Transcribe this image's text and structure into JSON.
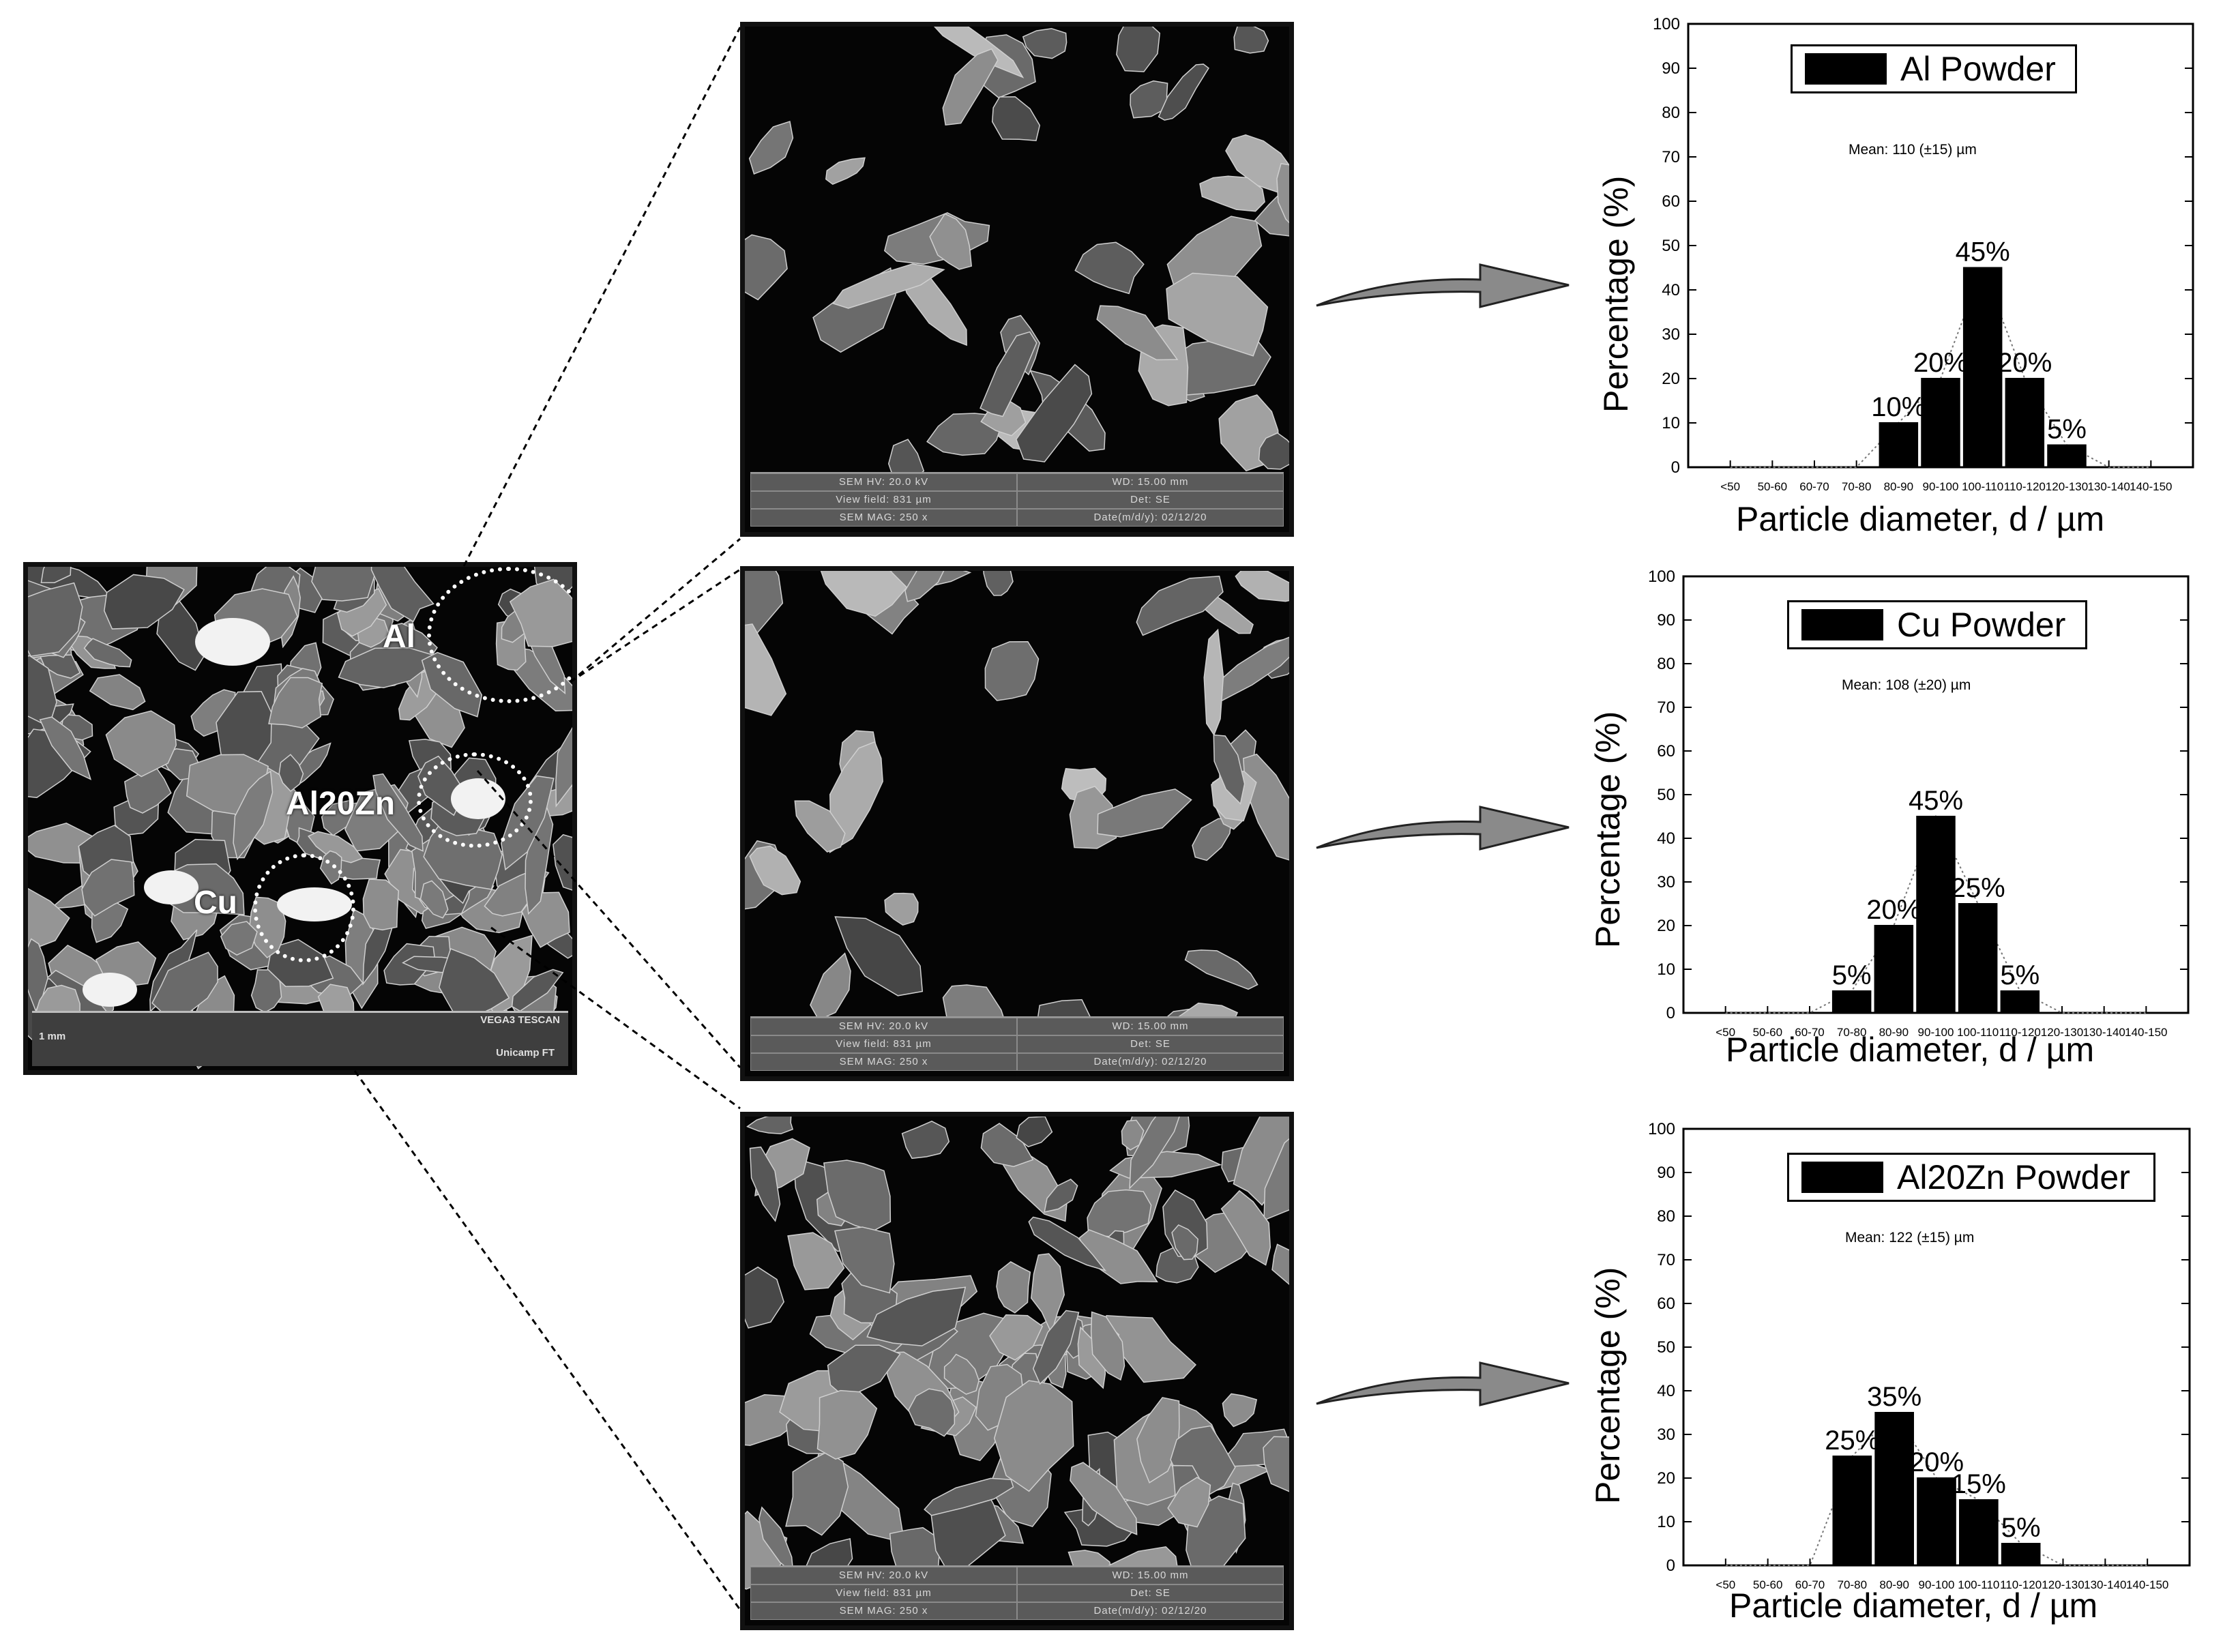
{
  "overview": {
    "footer_left": "1 mm",
    "footer_right_top": "VEGA3 TESCAN",
    "footer_right_bottom": "Unicamp FT",
    "regions": [
      {
        "label": "Al"
      },
      {
        "label": "Al20Zn"
      },
      {
        "label": "Cu"
      }
    ]
  },
  "sem_panels": [
    {
      "info": [
        "SEM HV: 20.0 kV",
        "WD: 15.00 mm",
        "View field: 831 µm",
        "Det: SE",
        "SEM MAG: 250 x",
        "Date(m/d/y): 02/12/20"
      ]
    },
    {
      "info": [
        "SEM HV: 20.0 kV",
        "WD: 15.00 mm",
        "View field: 831 µm",
        "Det: SE",
        "SEM MAG: 250 x",
        "Date(m/d/y): 02/12/20"
      ]
    },
    {
      "info": [
        "SEM HV: 20.0 kV",
        "WD: 15.00 mm",
        "View field: 831 µm",
        "Det: SE",
        "SEM MAG: 250 x",
        "Date(m/d/y): 02/12/20"
      ]
    }
  ],
  "chart_data": [
    {
      "type": "bar",
      "legend": "Al Powder",
      "mean_text": "Mean: 110 (±15) µm",
      "xlabel": "Particle diameter, d  / µm",
      "ylabel": "Percentage (%)",
      "ylim": [
        0,
        100
      ],
      "yticks": [
        "0",
        "10",
        "20",
        "30",
        "40",
        "50",
        "60",
        "70",
        "80",
        "90",
        "100"
      ],
      "categories": [
        "<50",
        "50-60",
        "60-70",
        "70-80",
        "80-90",
        "90-100",
        "100-110",
        "110-120",
        "120-130",
        "130-140",
        "140-150"
      ],
      "values": [
        0,
        0,
        0,
        0,
        10,
        20,
        45,
        20,
        5,
        0,
        0
      ],
      "data_labels": [
        "",
        "",
        "",
        "",
        "10%",
        "20%",
        "45%",
        "20%",
        "5%",
        "",
        ""
      ],
      "legend_position": "top",
      "bar_color": "#000000"
    },
    {
      "type": "bar",
      "legend": "Cu Powder",
      "mean_text": "Mean: 108 (±20) µm",
      "xlabel": "Particle diameter, d  / µm",
      "ylabel": "Percentage (%)",
      "ylim": [
        0,
        100
      ],
      "yticks": [
        "0",
        "10",
        "20",
        "30",
        "40",
        "50",
        "60",
        "70",
        "80",
        "90",
        "100"
      ],
      "categories": [
        "<50",
        "50-60",
        "60-70",
        "70-80",
        "80-90",
        "90-100",
        "100-110",
        "110-120",
        "120-130",
        "130-140",
        "140-150"
      ],
      "values": [
        0,
        0,
        0,
        5,
        20,
        45,
        25,
        5,
        0,
        0,
        0
      ],
      "data_labels": [
        "",
        "",
        "",
        "5%",
        "20%",
        "45%",
        "25%",
        "5%",
        "",
        "",
        ""
      ],
      "legend_position": "top",
      "bar_color": "#000000"
    },
    {
      "type": "bar",
      "legend": "Al20Zn Powder",
      "mean_text": "Mean: 122 (±15) µm",
      "xlabel": "Particle diameter, d  / µm",
      "ylabel": "Percentage (%)",
      "ylim": [
        0,
        100
      ],
      "yticks": [
        "0",
        "10",
        "20",
        "30",
        "40",
        "50",
        "60",
        "70",
        "80",
        "90",
        "100"
      ],
      "categories": [
        "<50",
        "50-60",
        "60-70",
        "70-80",
        "80-90",
        "90-100",
        "100-110",
        "110-120",
        "120-130",
        "130-140",
        "140-150"
      ],
      "values": [
        0,
        0,
        0,
        25,
        35,
        20,
        15,
        5,
        0,
        0,
        0
      ],
      "data_labels": [
        "",
        "",
        "",
        "25%",
        "35%",
        "20%",
        "15%",
        "5%",
        "",
        "",
        ""
      ],
      "legend_position": "top",
      "bar_color": "#000000"
    }
  ]
}
